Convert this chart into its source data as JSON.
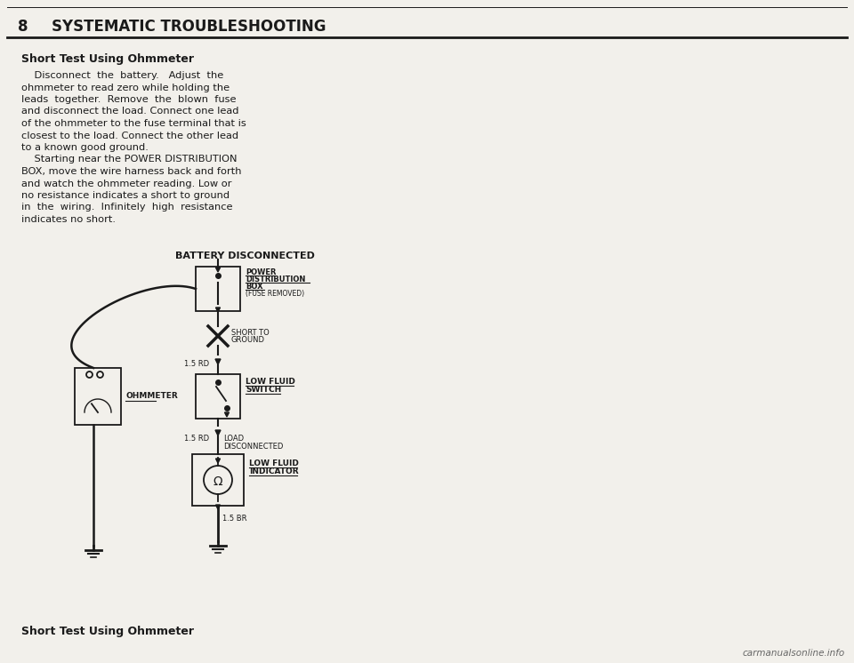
{
  "page_number": "8",
  "header_title": "SYSTEMATIC TROUBLESHOOTING",
  "section_title": "Short Test Using Ohmmeter",
  "body_text_1": [
    "    Disconnect  the  battery.   Adjust  the",
    "ohmmeter to read zero while holding the",
    "leads  together.  Remove  the  blown  fuse",
    "and disconnect the load. Connect one lead",
    "of the ohmmeter to the fuse terminal that is",
    "closest to the load. Connect the other lead",
    "to a known good ground."
  ],
  "body_text_2": [
    "    Starting near the POWER DISTRIBUTION",
    "BOX, move the wire harness back and forth",
    "and watch the ohmmeter reading. Low or",
    "no resistance indicates a short to ground",
    "in  the  wiring.  Infinitely  high  resistance",
    "indicates no short."
  ],
  "diagram_title": "BATTERY DISCONNECTED",
  "lbl_power_dist": [
    "POWER",
    "DISTRIBUTION",
    "BOX",
    "(FUSE REMOVED)"
  ],
  "lbl_short": [
    "SHORT TO",
    "GROUND"
  ],
  "lbl_wire1": "1.5 RD",
  "lbl_switch": [
    "LOW FLUID",
    "SWITCH"
  ],
  "lbl_wire2": "1.5 RD",
  "lbl_load": [
    "LOAD",
    "DISCONNECTED"
  ],
  "lbl_indicator": [
    "LOW FLUID",
    "INDICATOR"
  ],
  "lbl_wire3": "1.5 BR",
  "lbl_ohmmeter": "OHMMETER",
  "footer_text": "Short Test Using Ohmmeter",
  "watermark": "carmanualsonline.info",
  "bg_color": "#f2f0eb",
  "text_color": "#1a1a1a",
  "line_color": "#1a1a1a",
  "white": "#ffffff"
}
